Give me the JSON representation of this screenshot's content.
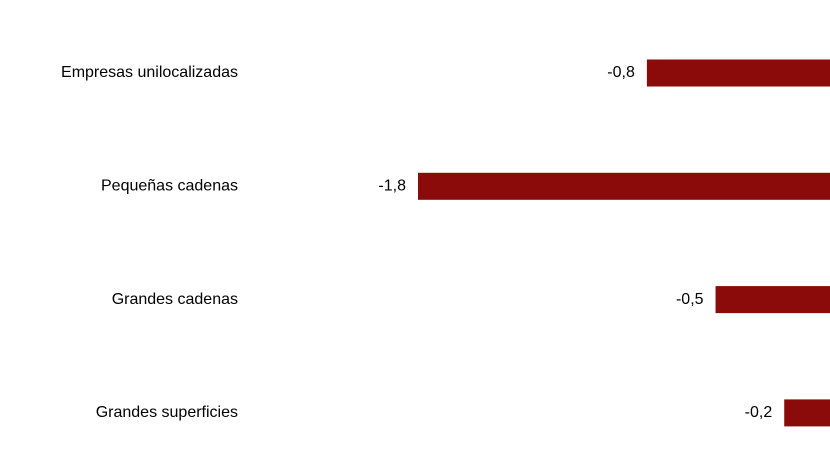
{
  "chart_data": {
    "type": "barh",
    "categories": [
      "Empresas unilocalizadas",
      "Pequeñas cadenas",
      "Grandes cadenas",
      "Grandes superficies"
    ],
    "values": [
      -0.8,
      -1.8,
      -0.5,
      -0.2
    ],
    "value_labels": [
      "-0,8",
      "-1,8",
      "-0,5",
      "-0,2"
    ],
    "color": "#8b0a0a",
    "xlim": [
      -1.8,
      0
    ]
  }
}
